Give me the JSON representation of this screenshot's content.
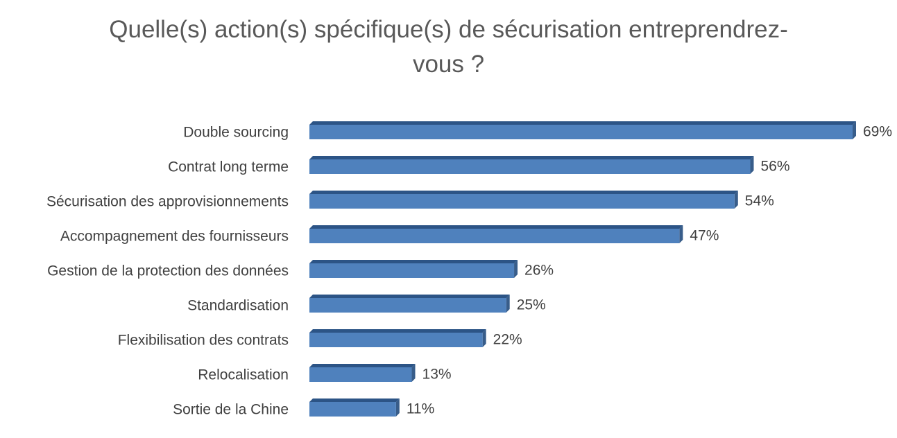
{
  "chart_data": {
    "type": "bar",
    "orientation": "horizontal",
    "title_lines": [
      "Quelle(s) action(s) spécifique(s) de sécurisation entreprendrez-",
      "vous ?"
    ],
    "categories": [
      "Double sourcing",
      "Contrat long terme",
      "Sécurisation des approvisionnements",
      "Accompagnement des fournisseurs",
      "Gestion de la protection des données",
      "Standardisation",
      "Flexibilisation des contrats",
      "Relocalisation",
      "Sortie de la Chine"
    ],
    "values": [
      69,
      56,
      54,
      47,
      26,
      25,
      22,
      13,
      11
    ],
    "data_labels": [
      "69%",
      "56%",
      "54%",
      "47%",
      "26%",
      "25%",
      "22%",
      "13%",
      "11%"
    ],
    "unit": "%",
    "xlim": [
      0,
      69
    ],
    "grid": false,
    "legend": "none",
    "bar_color": "#4F81BD",
    "bar_top_color": "#2C5486",
    "bar_side_color": "#385D8A"
  }
}
